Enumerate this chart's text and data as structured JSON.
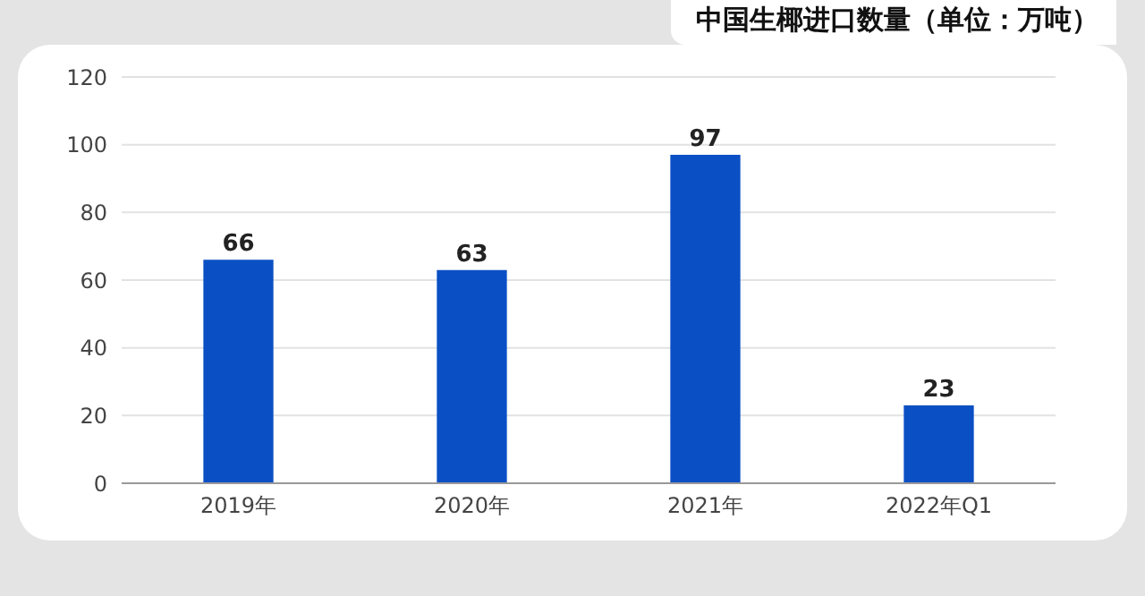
{
  "chart_data": {
    "type": "bar",
    "title": "中国生椰进口数量（单位：万吨）",
    "categories": [
      "2019年",
      "2020年",
      "2021年",
      "2022年Q1"
    ],
    "values": [
      66,
      63,
      97,
      23
    ],
    "color": "#0a4fc4",
    "ylim": [
      0,
      120
    ],
    "yticks": [
      0,
      20,
      40,
      60,
      80,
      100,
      120
    ],
    "grid": "y",
    "data_labels": true
  }
}
